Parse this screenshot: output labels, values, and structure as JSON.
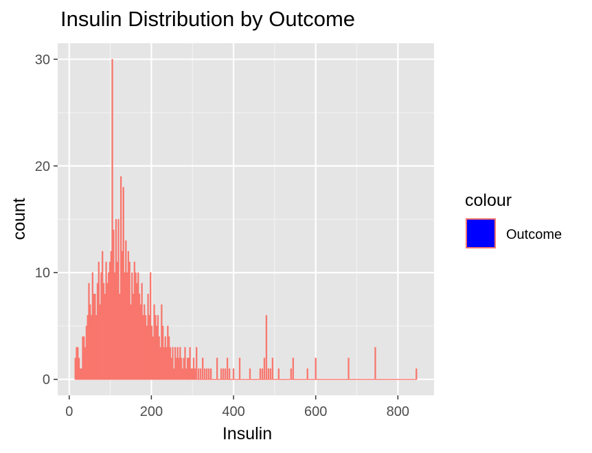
{
  "chart_data": {
    "type": "bar",
    "title": "Insulin Distribution by Outcome",
    "xlabel": "Insulin",
    "ylabel": "count",
    "xlim": [
      -28,
      888
    ],
    "ylim": [
      -1.5,
      31.5
    ],
    "xticks": [
      0,
      200,
      400,
      600,
      800
    ],
    "yticks": [
      0,
      10,
      20,
      30
    ],
    "grid": true,
    "bin_width": 2.8,
    "legend": {
      "title": "colour",
      "position": "right",
      "entries": [
        {
          "label": "Outcome",
          "fill": "#0000FF",
          "outline": "#F8766D"
        }
      ]
    },
    "colors": {
      "bars": "#F8766D",
      "panel": "#E5E5E5",
      "grid": "#FFFFFF"
    },
    "series": [
      {
        "name": "Outcome",
        "x": [
          15,
          18,
          21,
          24,
          27,
          30,
          33,
          36,
          39,
          42,
          45,
          48,
          51,
          54,
          57,
          60,
          63,
          66,
          69,
          72,
          75,
          78,
          81,
          84,
          87,
          90,
          93,
          96,
          99,
          102,
          105,
          108,
          111,
          114,
          117,
          120,
          123,
          126,
          129,
          132,
          135,
          138,
          141,
          144,
          147,
          150,
          153,
          156,
          159,
          162,
          165,
          168,
          171,
          174,
          177,
          180,
          183,
          186,
          189,
          192,
          195,
          198,
          201,
          204,
          207,
          210,
          213,
          216,
          219,
          222,
          225,
          228,
          231,
          234,
          237,
          240,
          243,
          246,
          249,
          252,
          255,
          258,
          261,
          264,
          267,
          270,
          273,
          276,
          279,
          282,
          285,
          288,
          291,
          294,
          297,
          300,
          303,
          306,
          310,
          315,
          320,
          325,
          330,
          335,
          340,
          345,
          360,
          370,
          375,
          380,
          385,
          390,
          400,
          415,
          440,
          465,
          470,
          475,
          480,
          485,
          490,
          495,
          510,
          540,
          545,
          580,
          600,
          680,
          745,
          845
        ],
        "values": [
          2,
          3,
          3,
          2,
          1,
          1,
          4,
          4,
          3,
          5,
          6,
          9,
          7,
          6,
          10,
          8,
          8,
          6,
          9,
          11,
          7,
          10,
          12,
          9,
          8,
          11,
          9,
          10,
          11,
          12,
          30,
          14,
          10,
          15,
          11,
          15,
          8,
          19,
          12,
          18,
          10,
          13,
          10,
          12,
          11,
          7,
          10,
          8,
          11,
          10,
          9,
          10,
          8,
          7,
          9,
          6,
          7,
          6,
          5,
          8,
          6,
          10,
          5,
          4,
          7,
          6,
          5,
          6,
          4,
          3,
          7,
          5,
          3,
          4,
          3,
          5,
          4,
          3,
          2,
          3,
          1,
          3,
          2,
          3,
          2,
          3,
          2,
          1,
          2,
          3,
          1,
          2,
          2,
          3,
          1,
          1,
          2,
          1,
          3,
          1,
          1,
          2,
          1,
          1,
          1,
          1,
          2,
          1,
          1,
          1,
          2,
          1,
          1,
          2,
          1,
          1,
          1,
          2,
          6,
          1,
          1,
          2,
          1,
          1,
          2,
          1,
          2,
          2,
          3,
          1
        ]
      }
    ]
  }
}
